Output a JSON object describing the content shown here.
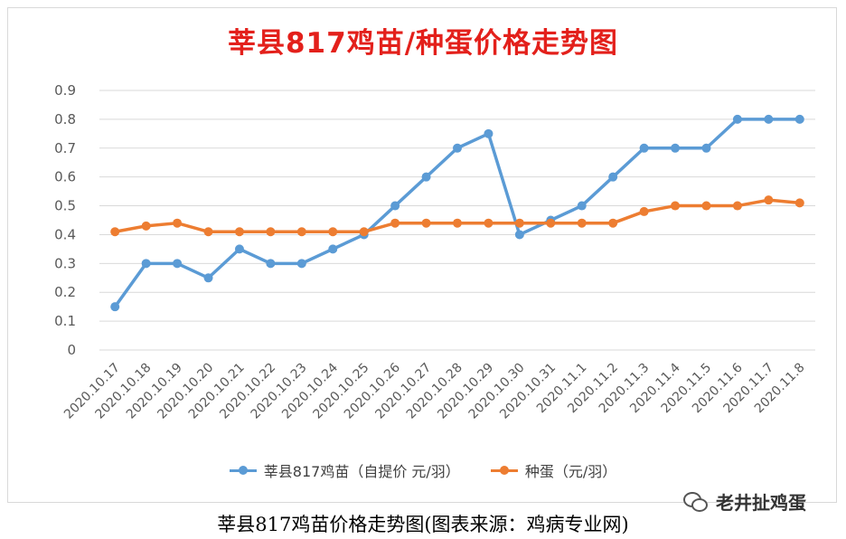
{
  "chart_data": {
    "type": "line",
    "title": "莘县817鸡苗/种蛋价格走势图",
    "xlabel": "",
    "ylabel": "",
    "ylim": [
      0,
      0.9
    ],
    "yticks": [
      "0",
      "0.1",
      "0.2",
      "0.3",
      "0.4",
      "0.5",
      "0.6",
      "0.7",
      "0.8",
      "0.9"
    ],
    "grid": true,
    "legend_position": "bottom",
    "categories": [
      "2020.10.17",
      "2020.10.18",
      "2020.10.19",
      "2020.10.20",
      "2020.10.21",
      "2020.10.22",
      "2020.10.23",
      "2020.10.24",
      "2020.10.25",
      "2020.10.26",
      "2020.10.27",
      "2020.10.28",
      "2020.10.29",
      "2020.10.30",
      "2020.10.31",
      "2020.11.1",
      "2020.11.2",
      "2020.11.3",
      "2020.11.4",
      "2020.11.5",
      "2020.11.6",
      "2020.11.7",
      "2020.11.8"
    ],
    "series": [
      {
        "name": "莘县817鸡苗（自提价 元/羽）",
        "color": "#5b9bd5",
        "values": [
          0.15,
          0.3,
          0.3,
          0.25,
          0.35,
          0.3,
          0.3,
          0.35,
          0.4,
          0.5,
          0.6,
          0.7,
          0.75,
          0.4,
          0.45,
          0.5,
          0.6,
          0.7,
          0.7,
          0.7,
          0.8,
          0.8,
          0.8
        ]
      },
      {
        "name": "种蛋（元/羽）",
        "color": "#ed7d31",
        "values": [
          0.41,
          0.43,
          0.44,
          0.41,
          0.41,
          0.41,
          0.41,
          0.41,
          0.41,
          0.44,
          0.44,
          0.44,
          0.44,
          0.44,
          0.44,
          0.44,
          0.44,
          0.48,
          0.5,
          0.5,
          0.5,
          0.52,
          0.51
        ]
      }
    ]
  },
  "caption": "莘县817鸡苗价格走势图(图表来源：鸡病专业网)",
  "watermark": {
    "icon": "wechat-icon",
    "text": "老井扯鸡蛋"
  }
}
